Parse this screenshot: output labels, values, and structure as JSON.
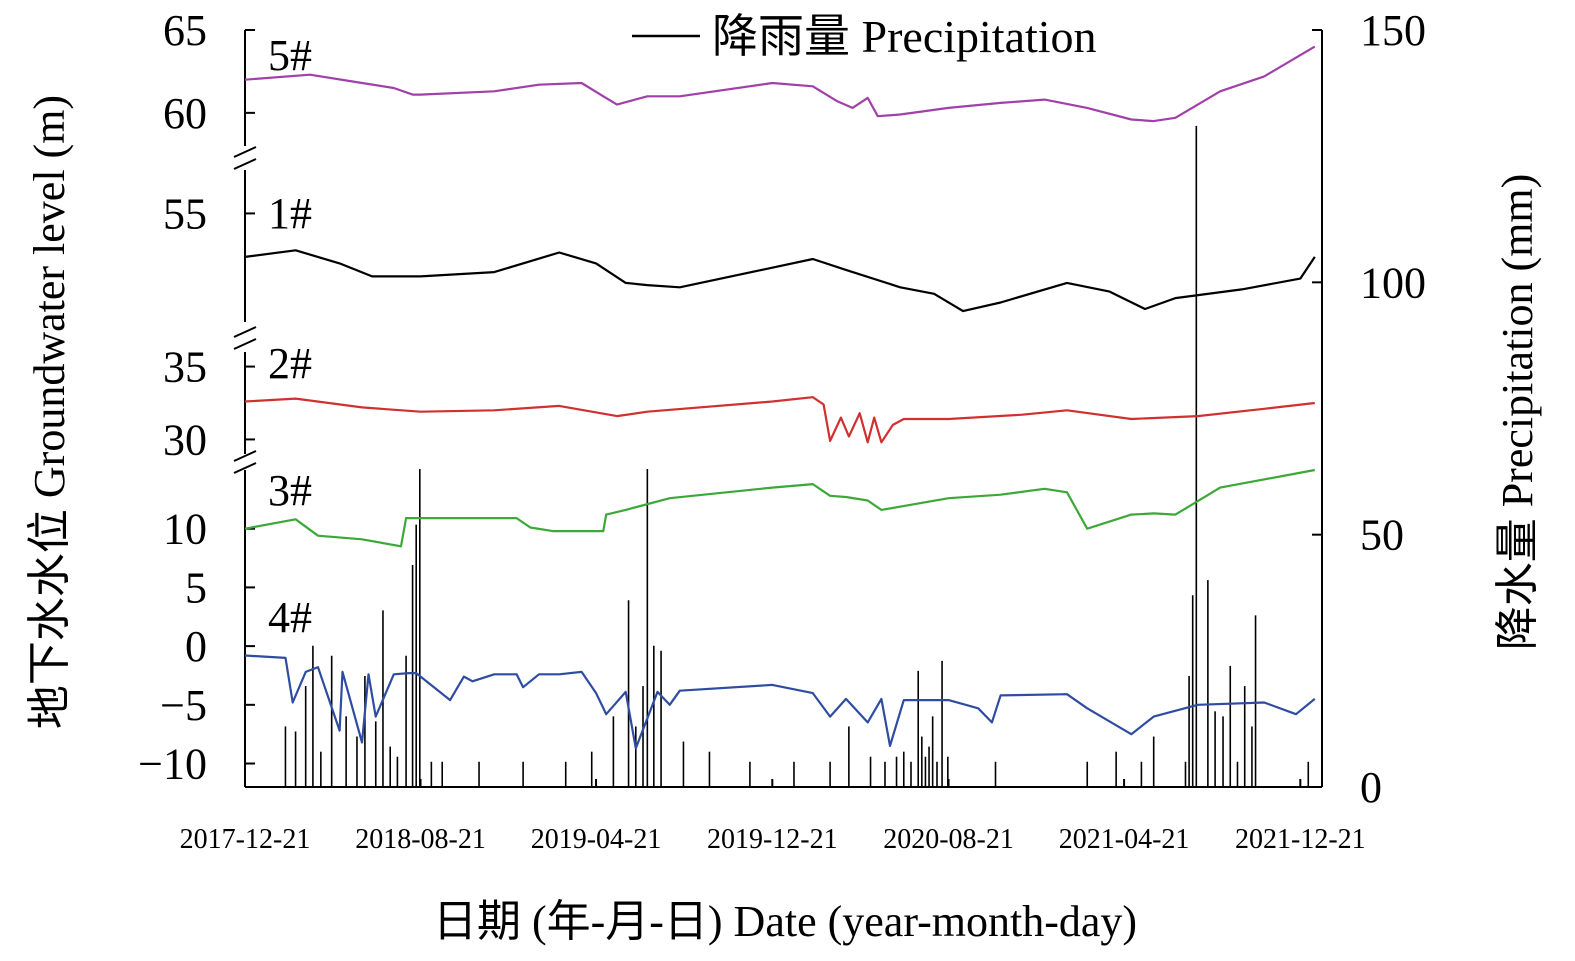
{
  "chart_data": {
    "type": "line",
    "xlabel": "日期 (年-月-日) Date (year-month-day)",
    "ylabel_left": "地下水水位 Groundwater level (m)",
    "ylabel_right": "降水量 Precipitation (mm)",
    "legend": {
      "label": "降雨量  Precipitation",
      "position": "top-center"
    },
    "x_ticks": [
      "2017-12-21",
      "2018-08-21",
      "2019-04-21",
      "2019-12-21",
      "2020-08-21",
      "2021-04-21",
      "2021-12-21"
    ],
    "xlim": [
      "2017-12-21",
      "2022-01-20"
    ],
    "right_axis": {
      "ticks": [
        0,
        50,
        100,
        150
      ],
      "ylim": [
        0,
        150
      ]
    },
    "left_axis_segments": [
      {
        "ylim": [
          58,
          65
        ],
        "ticks": [
          60,
          65
        ]
      },
      {
        "ylim": [
          50,
          57
        ],
        "ticks": [
          55
        ]
      },
      {
        "ylim": [
          29,
          36
        ],
        "ticks": [
          30,
          35
        ]
      },
      {
        "ylim": [
          -12,
          15
        ],
        "ticks": [
          -10,
          -5,
          0,
          5,
          10
        ]
      }
    ],
    "series": [
      {
        "name": "5#",
        "color": "#A040A8",
        "segment": 0,
        "x": [
          "2017-12-21",
          "2018-03-21",
          "2018-06-01",
          "2018-07-15",
          "2018-08-10",
          "2018-08-21",
          "2018-12-01",
          "2019-02-01",
          "2019-04-01",
          "2019-05-01",
          "2019-05-20",
          "2019-07-01",
          "2019-08-15",
          "2019-12-21",
          "2020-02-15",
          "2020-03-20",
          "2020-04-10",
          "2020-05-01",
          "2020-05-15",
          "2020-06-15",
          "2020-08-21",
          "2020-11-01",
          "2021-01-01",
          "2021-03-01",
          "2021-05-01",
          "2021-06-01",
          "2021-07-01",
          "2021-09-01",
          "2021-11-01",
          "2022-01-10"
        ],
        "y": [
          62.0,
          62.3,
          61.8,
          61.5,
          61.1,
          61.1,
          61.3,
          61.7,
          61.8,
          61.0,
          60.5,
          61.0,
          61.0,
          61.8,
          61.6,
          60.7,
          60.3,
          60.9,
          59.8,
          59.9,
          60.3,
          60.6,
          60.8,
          60.3,
          59.6,
          59.5,
          59.7,
          61.3,
          62.2,
          64.0
        ]
      },
      {
        "name": "1#",
        "color": "#000000",
        "segment": 1,
        "x": [
          "2017-12-21",
          "2018-03-01",
          "2018-05-01",
          "2018-06-15",
          "2018-08-21",
          "2018-12-01",
          "2019-03-01",
          "2019-04-21",
          "2019-06-01",
          "2019-07-01",
          "2019-08-15",
          "2019-12-21",
          "2020-02-15",
          "2020-04-01",
          "2020-06-15",
          "2020-08-01",
          "2020-09-10",
          "2020-11-01",
          "2021-02-01",
          "2021-04-01",
          "2021-05-20",
          "2021-07-01",
          "2021-10-01",
          "2021-12-21",
          "2022-01-10"
        ],
        "y": [
          53.0,
          53.3,
          52.7,
          52.1,
          52.1,
          52.3,
          53.2,
          52.7,
          51.8,
          51.7,
          51.6,
          52.5,
          52.9,
          52.4,
          51.6,
          51.3,
          50.5,
          50.9,
          51.8,
          51.4,
          50.6,
          51.1,
          51.5,
          52.0,
          53.0
        ]
      },
      {
        "name": "2#",
        "color": "#D03030",
        "segment": 2,
        "x": [
          "2017-12-21",
          "2018-03-01",
          "2018-06-01",
          "2018-08-21",
          "2018-12-01",
          "2019-03-01",
          "2019-05-20",
          "2019-07-01",
          "2019-12-21",
          "2020-02-15",
          "2020-03-01",
          "2020-03-10",
          "2020-03-25",
          "2020-04-05",
          "2020-04-20",
          "2020-05-01",
          "2020-05-10",
          "2020-05-20",
          "2020-06-05",
          "2020-06-20",
          "2020-08-21",
          "2020-12-01",
          "2021-02-01",
          "2021-05-01",
          "2021-08-01",
          "2021-11-01",
          "2022-01-10"
        ],
        "y": [
          32.6,
          32.8,
          32.2,
          31.9,
          32.0,
          32.3,
          31.6,
          31.9,
          32.6,
          32.9,
          32.4,
          29.9,
          31.5,
          30.2,
          31.8,
          29.8,
          31.5,
          29.8,
          31.0,
          31.4,
          31.4,
          31.7,
          32.0,
          31.4,
          31.6,
          32.1,
          32.5
        ]
      },
      {
        "name": "3#",
        "color": "#3BA838",
        "segment": 3,
        "x": [
          "2017-12-21",
          "2018-03-01",
          "2018-04-01",
          "2018-06-01",
          "2018-07-25",
          "2018-08-01",
          "2018-10-01",
          "2018-12-01",
          "2019-01-01",
          "2019-01-20",
          "2019-02-20",
          "2019-04-01",
          "2019-05-01",
          "2019-05-05",
          "2019-06-01",
          "2019-08-01",
          "2019-12-21",
          "2020-02-15",
          "2020-03-10",
          "2020-04-01",
          "2020-05-01",
          "2020-05-20",
          "2020-08-21",
          "2020-11-01",
          "2021-01-01",
          "2021-02-01",
          "2021-03-01",
          "2021-05-01",
          "2021-06-01",
          "2021-07-01",
          "2021-09-01",
          "2022-01-10"
        ],
        "y": [
          10.0,
          10.8,
          9.4,
          9.1,
          8.5,
          10.9,
          10.9,
          10.9,
          10.9,
          10.1,
          9.8,
          9.8,
          9.8,
          11.2,
          11.6,
          12.6,
          13.5,
          13.8,
          12.8,
          12.7,
          12.4,
          11.6,
          12.6,
          12.9,
          13.4,
          13.1,
          10.0,
          11.2,
          11.3,
          11.2,
          13.5,
          15.0
        ]
      },
      {
        "name": "4#",
        "color": "#2F4DA0",
        "segment": 3,
        "x": [
          "2017-12-21",
          "2018-02-15",
          "2018-02-25",
          "2018-03-15",
          "2018-04-01",
          "2018-05-01",
          "2018-05-05",
          "2018-06-01",
          "2018-06-10",
          "2018-06-20",
          "2018-07-15",
          "2018-08-05",
          "2018-08-15",
          "2018-10-01",
          "2018-10-20",
          "2018-11-01",
          "2018-12-01",
          "2019-01-01",
          "2019-01-10",
          "2019-02-01",
          "2019-03-01",
          "2019-04-01",
          "2019-04-21",
          "2019-05-05",
          "2019-06-01",
          "2019-06-15",
          "2019-07-15",
          "2019-08-01",
          "2019-08-15",
          "2019-12-21",
          "2020-02-15",
          "2020-03-10",
          "2020-04-01",
          "2020-05-01",
          "2020-05-20",
          "2020-06-01",
          "2020-06-20",
          "2020-08-21",
          "2020-10-01",
          "2020-10-20",
          "2020-11-01",
          "2021-02-01",
          "2021-03-01",
          "2021-05-01",
          "2021-06-01",
          "2021-08-01",
          "2021-11-01",
          "2021-12-15",
          "2022-01-10"
        ],
        "y": [
          -0.8,
          -1.0,
          -4.8,
          -2.2,
          -1.8,
          -7.2,
          -2.2,
          -8.2,
          -2.4,
          -6.0,
          -2.4,
          -2.3,
          -2.3,
          -4.6,
          -2.6,
          -3.0,
          -2.4,
          -2.4,
          -3.5,
          -2.4,
          -2.4,
          -2.2,
          -4.0,
          -5.8,
          -3.9,
          -8.7,
          -3.9,
          -5.0,
          -3.8,
          -3.3,
          -4.0,
          -6.0,
          -4.5,
          -6.5,
          -4.5,
          -8.5,
          -4.6,
          -4.6,
          -5.3,
          -6.5,
          -4.2,
          -4.1,
          -5.3,
          -7.5,
          -6.0,
          -5.0,
          -4.8,
          -5.8,
          -4.5
        ]
      }
    ],
    "precipitation": {
      "name": "降雨量  Precipitation",
      "color": "#000000",
      "x": [
        "2018-02-15",
        "2018-03-01",
        "2018-03-15",
        "2018-03-25",
        "2018-04-05",
        "2018-04-20",
        "2018-05-10",
        "2018-05-25",
        "2018-06-05",
        "2018-06-20",
        "2018-06-30",
        "2018-07-10",
        "2018-07-20",
        "2018-08-01",
        "2018-08-10",
        "2018-08-15",
        "2018-08-20",
        "2018-09-05",
        "2018-09-20",
        "2018-11-10",
        "2019-01-10",
        "2019-03-10",
        "2019-04-15",
        "2019-05-15",
        "2019-06-05",
        "2019-06-15",
        "2019-06-25",
        "2019-07-01",
        "2019-07-10",
        "2019-07-20",
        "2019-08-20",
        "2019-09-25",
        "2019-11-20",
        "2020-01-20",
        "2020-03-10",
        "2020-04-05",
        "2020-05-05",
        "2020-05-25",
        "2020-06-10",
        "2020-06-20",
        "2020-06-30",
        "2020-07-10",
        "2020-07-15",
        "2020-07-20",
        "2020-07-25",
        "2020-07-30",
        "2020-08-05",
        "2020-08-12",
        "2020-08-20",
        "2020-10-25",
        "2021-03-01",
        "2021-04-10",
        "2021-05-15",
        "2021-06-01",
        "2021-07-15",
        "2021-07-20",
        "2021-07-25",
        "2021-07-30",
        "2021-08-15",
        "2021-08-25",
        "2021-09-05",
        "2021-09-15",
        "2021-09-25",
        "2021-10-05",
        "2021-10-15",
        "2021-10-20",
        "2022-01-01"
      ],
      "values": [
        12,
        11,
        20,
        28,
        7,
        26,
        14,
        10,
        22,
        13,
        35,
        8,
        6,
        26,
        44,
        52,
        63,
        5,
        5,
        5,
        5,
        5,
        7,
        14,
        37,
        12,
        20,
        63,
        28,
        27,
        9,
        7,
        5,
        5,
        5,
        12,
        6,
        5,
        6,
        7,
        5,
        23,
        10,
        6,
        8,
        14,
        5,
        25,
        6,
        5,
        5,
        7,
        5,
        10,
        5,
        22,
        38,
        131,
        41,
        15,
        14,
        24,
        5,
        20,
        12,
        34,
        5
      ]
    },
    "annotations": [
      "5#",
      "1#",
      "2#",
      "3#",
      "4#"
    ]
  }
}
